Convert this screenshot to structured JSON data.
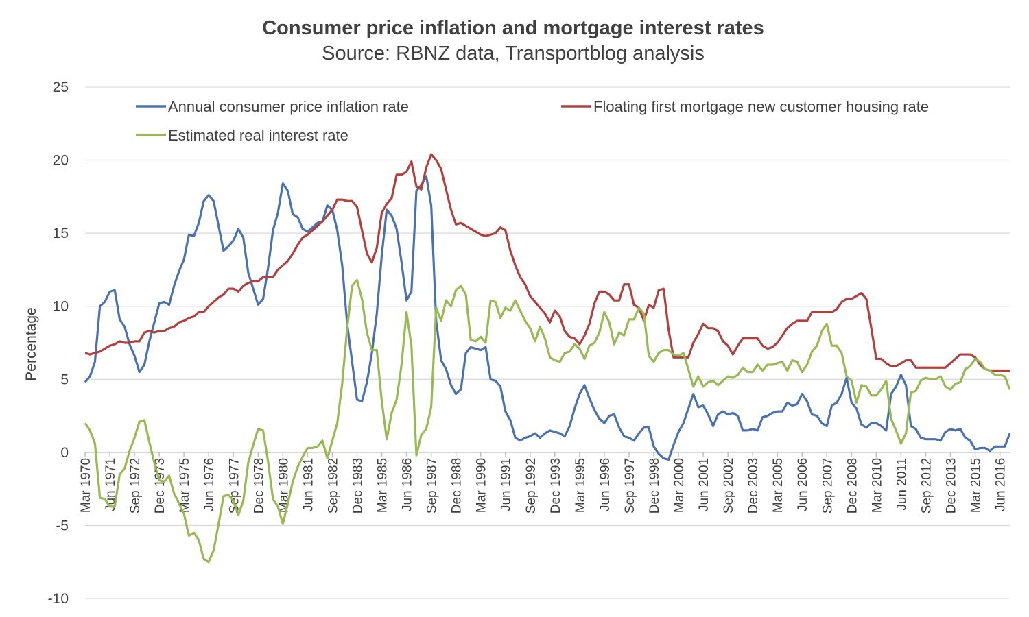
{
  "chart_data": {
    "type": "line",
    "title": "Consumer price inflation  and mortgage interest rates",
    "subtitle": "Source: RBNZ data, Transportblog analysis",
    "y_label": "Percentage",
    "categories": [
      "Mar 1970",
      null,
      null,
      null,
      null,
      "Jun 1971",
      null,
      null,
      null,
      null,
      "Sep 1972",
      null,
      null,
      null,
      null,
      "Dec 1973",
      null,
      null,
      null,
      null,
      "Mar 1975",
      null,
      null,
      null,
      null,
      "Jun 1976",
      null,
      null,
      null,
      null,
      "Sep 1977",
      null,
      null,
      null,
      null,
      "Dec 1978",
      null,
      null,
      null,
      null,
      "Mar 1980",
      null,
      null,
      null,
      null,
      "Jun 1981",
      null,
      null,
      null,
      null,
      "Sep 1982",
      null,
      null,
      null,
      null,
      "Dec 1983",
      null,
      null,
      null,
      null,
      "Mar 1985",
      null,
      null,
      null,
      null,
      "Jun 1986",
      null,
      null,
      null,
      null,
      "Sep 1987",
      null,
      null,
      null,
      null,
      "Dec 1988",
      null,
      null,
      null,
      null,
      "Mar 1990",
      null,
      null,
      null,
      null,
      "Jun 1991",
      null,
      null,
      null,
      null,
      "Sep 1992",
      null,
      null,
      null,
      null,
      "Dec 1993",
      null,
      null,
      null,
      null,
      "Mar 1995",
      null,
      null,
      null,
      null,
      "Jun 1996",
      null,
      null,
      null,
      null,
      "Sep 1997",
      null,
      null,
      null,
      null,
      "Dec 1998",
      null,
      null,
      null,
      null,
      "Mar 2000",
      null,
      null,
      null,
      null,
      "Jun 2001",
      null,
      null,
      null,
      null,
      "Sep 2002",
      null,
      null,
      null,
      null,
      "Dec 2003",
      null,
      null,
      null,
      null,
      "Mar 2005",
      null,
      null,
      null,
      null,
      "Jun 2006",
      null,
      null,
      null,
      null,
      "Sep 2007",
      null,
      null,
      null,
      null,
      "Dec 2008",
      null,
      null,
      null,
      null,
      "Mar 2010",
      null,
      null,
      null,
      null,
      "Jun 2011",
      null,
      null,
      null,
      null,
      "Sep 2012",
      null,
      null,
      null,
      null,
      "Dec 2013",
      null,
      null,
      null,
      null,
      "Mar 2015",
      null,
      null,
      null,
      null,
      "Jun 2016",
      null,
      null
    ],
    "series": [
      {
        "name": "Annual consumer price inflation rate",
        "color": "#4a72b0",
        "values": [
          4.8,
          5.2,
          6.2,
          10.0,
          10.3,
          11.0,
          11.1,
          9.1,
          8.6,
          7.4,
          6.6,
          5.5,
          6.0,
          7.6,
          8.9,
          10.2,
          10.3,
          10.1,
          11.4,
          12.4,
          13.2,
          14.9,
          14.8,
          15.7,
          17.2,
          17.6,
          17.2,
          15.5,
          13.8,
          14.1,
          14.5,
          15.3,
          14.7,
          12.3,
          11.2,
          10.1,
          10.5,
          12.6,
          15.2,
          16.4,
          18.4,
          17.9,
          16.3,
          16.1,
          15.3,
          15.1,
          15.4,
          15.7,
          15.8,
          16.9,
          16.6,
          15.2,
          12.8,
          8.8,
          6.2,
          3.6,
          3.5,
          4.8,
          6.8,
          9.5,
          13.5,
          16.6,
          16.2,
          15.3,
          13.0,
          10.4,
          11.0,
          17.9,
          18.3,
          18.9,
          16.9,
          9.0,
          6.3,
          5.7,
          4.6,
          4.0,
          4.3,
          6.8,
          7.2,
          7.1,
          7.0,
          7.2,
          5.0,
          4.9,
          4.5,
          2.8,
          2.2,
          1.0,
          0.8,
          1.0,
          1.1,
          1.3,
          1.0,
          1.3,
          1.5,
          1.4,
          1.3,
          1.1,
          1.8,
          3.0,
          4.0,
          4.6,
          3.7,
          2.9,
          2.3,
          2.0,
          2.5,
          2.6,
          1.7,
          1.1,
          1.0,
          0.8,
          1.3,
          1.7,
          1.7,
          0.4,
          -0.1,
          -0.4,
          -0.5,
          0.5,
          1.4,
          2.0,
          3.0,
          4.0,
          3.1,
          3.2,
          2.6,
          1.8,
          2.6,
          2.8,
          2.6,
          2.7,
          2.5,
          1.5,
          1.5,
          1.6,
          1.5,
          2.4,
          2.5,
          2.7,
          2.8,
          2.8,
          3.4,
          3.2,
          3.3,
          4.0,
          3.5,
          2.6,
          2.5,
          2.0,
          1.8,
          3.2,
          3.4,
          4.0,
          5.1,
          3.4,
          3.0,
          1.9,
          1.7,
          2.0,
          2.0,
          1.8,
          1.5,
          4.0,
          4.5,
          5.3,
          4.6,
          1.8,
          1.6,
          1.0,
          0.9,
          0.9,
          0.9,
          0.8,
          1.4,
          1.6,
          1.5,
          1.6,
          1.0,
          0.8,
          0.2,
          0.3,
          0.3,
          0.1,
          0.4,
          0.4,
          0.4,
          1.3
        ]
      },
      {
        "name": "Floating first mortgage new customer housing rate",
        "color": "#b0413e",
        "values": [
          6.8,
          6.7,
          6.8,
          6.9,
          7.1,
          7.3,
          7.4,
          7.6,
          7.5,
          7.5,
          7.6,
          7.6,
          8.2,
          8.3,
          8.2,
          8.3,
          8.3,
          8.5,
          8.6,
          8.9,
          9.0,
          9.2,
          9.3,
          9.6,
          9.6,
          10.0,
          10.3,
          10.6,
          10.8,
          11.2,
          11.2,
          11.0,
          11.4,
          11.6,
          11.7,
          11.7,
          12.0,
          12.0,
          12.0,
          12.5,
          12.8,
          13.1,
          13.6,
          14.2,
          14.7,
          14.9,
          15.2,
          15.5,
          15.8,
          16.2,
          16.6,
          17.3,
          17.3,
          17.2,
          17.2,
          16.8,
          15.2,
          13.6,
          13.0,
          14.0,
          16.4,
          17.0,
          17.4,
          19.0,
          19.0,
          19.2,
          19.9,
          18.2,
          18.0,
          19.5,
          20.4,
          20.0,
          19.4,
          18.0,
          16.6,
          15.6,
          15.7,
          15.5,
          15.3,
          15.1,
          14.9,
          14.8,
          14.9,
          15.0,
          15.4,
          15.2,
          13.8,
          12.8,
          12.0,
          11.5,
          10.7,
          10.3,
          9.9,
          9.5,
          8.9,
          9.7,
          9.3,
          8.3,
          7.9,
          7.8,
          7.4,
          8.0,
          8.8,
          10.2,
          11.0,
          11.0,
          10.8,
          10.4,
          10.4,
          11.5,
          11.5,
          10.1,
          9.9,
          9.0,
          10.1,
          9.9,
          11.1,
          11.2,
          8.4,
          6.5,
          6.5,
          6.5,
          6.5,
          7.5,
          8.1,
          8.8,
          8.5,
          8.5,
          8.3,
          7.6,
          7.3,
          6.7,
          7.3,
          7.8,
          7.8,
          7.8,
          7.8,
          7.3,
          7.1,
          7.2,
          7.5,
          8.0,
          8.5,
          8.8,
          9.0,
          9.0,
          9.0,
          9.6,
          9.6,
          9.6,
          9.6,
          9.6,
          9.8,
          10.3,
          10.5,
          10.5,
          10.7,
          10.9,
          10.5,
          8.5,
          6.4,
          6.4,
          6.1,
          5.9,
          5.9,
          6.1,
          6.3,
          6.3,
          5.8,
          5.8,
          5.8,
          5.8,
          5.8,
          5.8,
          5.8,
          6.1,
          6.4,
          6.7,
          6.7,
          6.7,
          6.5,
          6.0,
          5.7,
          5.6,
          5.6,
          5.6,
          5.6,
          5.6
        ]
      },
      {
        "name": "Estimated real interest rate",
        "color": "#98b954",
        "values": [
          2.0,
          1.5,
          0.6,
          -3.1,
          -3.2,
          -3.7,
          -3.7,
          -1.5,
          -1.1,
          0.1,
          1.0,
          2.1,
          2.2,
          0.7,
          -0.7,
          -1.9,
          -2.0,
          -1.6,
          -2.8,
          -3.5,
          -4.2,
          -5.7,
          -5.5,
          -6.0,
          -7.3,
          -7.5,
          -6.7,
          -4.9,
          -3.0,
          -2.9,
          -3.3,
          -4.3,
          -3.3,
          -0.7,
          0.5,
          1.6,
          1.5,
          -0.6,
          -3.2,
          -3.7,
          -4.9,
          -3.5,
          -2.0,
          -1.0,
          -0.3,
          0.3,
          0.3,
          0.4,
          0.8,
          -0.4,
          0.8,
          2.0,
          4.7,
          8.5,
          11.4,
          11.8,
          10.5,
          8.2,
          7.0,
          7.0,
          3.5,
          0.9,
          2.7,
          3.6,
          6.0,
          9.6,
          7.3,
          -0.2,
          1.2,
          1.6,
          3.1,
          9.9,
          9.0,
          10.4,
          10.0,
          11.1,
          11.4,
          10.8,
          7.7,
          7.6,
          7.9,
          7.5,
          10.4,
          10.3,
          9.2,
          9.9,
          9.7,
          10.4,
          9.7,
          9.0,
          8.5,
          7.6,
          8.6,
          7.8,
          6.5,
          6.3,
          6.2,
          6.8,
          6.9,
          7.4,
          7.1,
          6.4,
          7.3,
          7.5,
          8.2,
          9.6,
          8.9,
          7.4,
          8.2,
          8.0,
          9.1,
          9.1,
          9.9,
          9.5,
          6.6,
          6.2,
          6.8,
          7.0,
          7.0,
          6.7,
          6.6,
          6.8,
          5.7,
          4.5,
          5.2,
          4.5,
          4.8,
          4.9,
          4.6,
          4.9,
          5.2,
          5.1,
          5.3,
          5.8,
          5.5,
          5.5,
          6.0,
          5.6,
          6.0,
          6.0,
          6.1,
          6.2,
          5.6,
          6.3,
          6.2,
          5.5,
          6.0,
          6.9,
          7.3,
          8.3,
          8.8,
          7.3,
          7.3,
          6.8,
          5.2,
          4.9,
          3.4,
          4.6,
          4.5,
          3.9,
          3.9,
          4.3,
          4.9,
          2.3,
          1.5,
          0.6,
          1.3,
          4.1,
          4.2,
          4.9,
          5.1,
          5.0,
          5.0,
          5.2,
          4.5,
          4.3,
          4.7,
          4.8,
          5.7,
          5.9,
          6.4,
          6.2,
          5.7,
          5.6,
          5.3,
          5.3,
          5.2,
          4.3
        ]
      }
    ],
    "ylim": [
      -10,
      25
    ],
    "yticks": [
      -10,
      -5,
      0,
      5,
      10,
      15,
      20,
      25
    ],
    "grid": true,
    "legend": "top"
  }
}
